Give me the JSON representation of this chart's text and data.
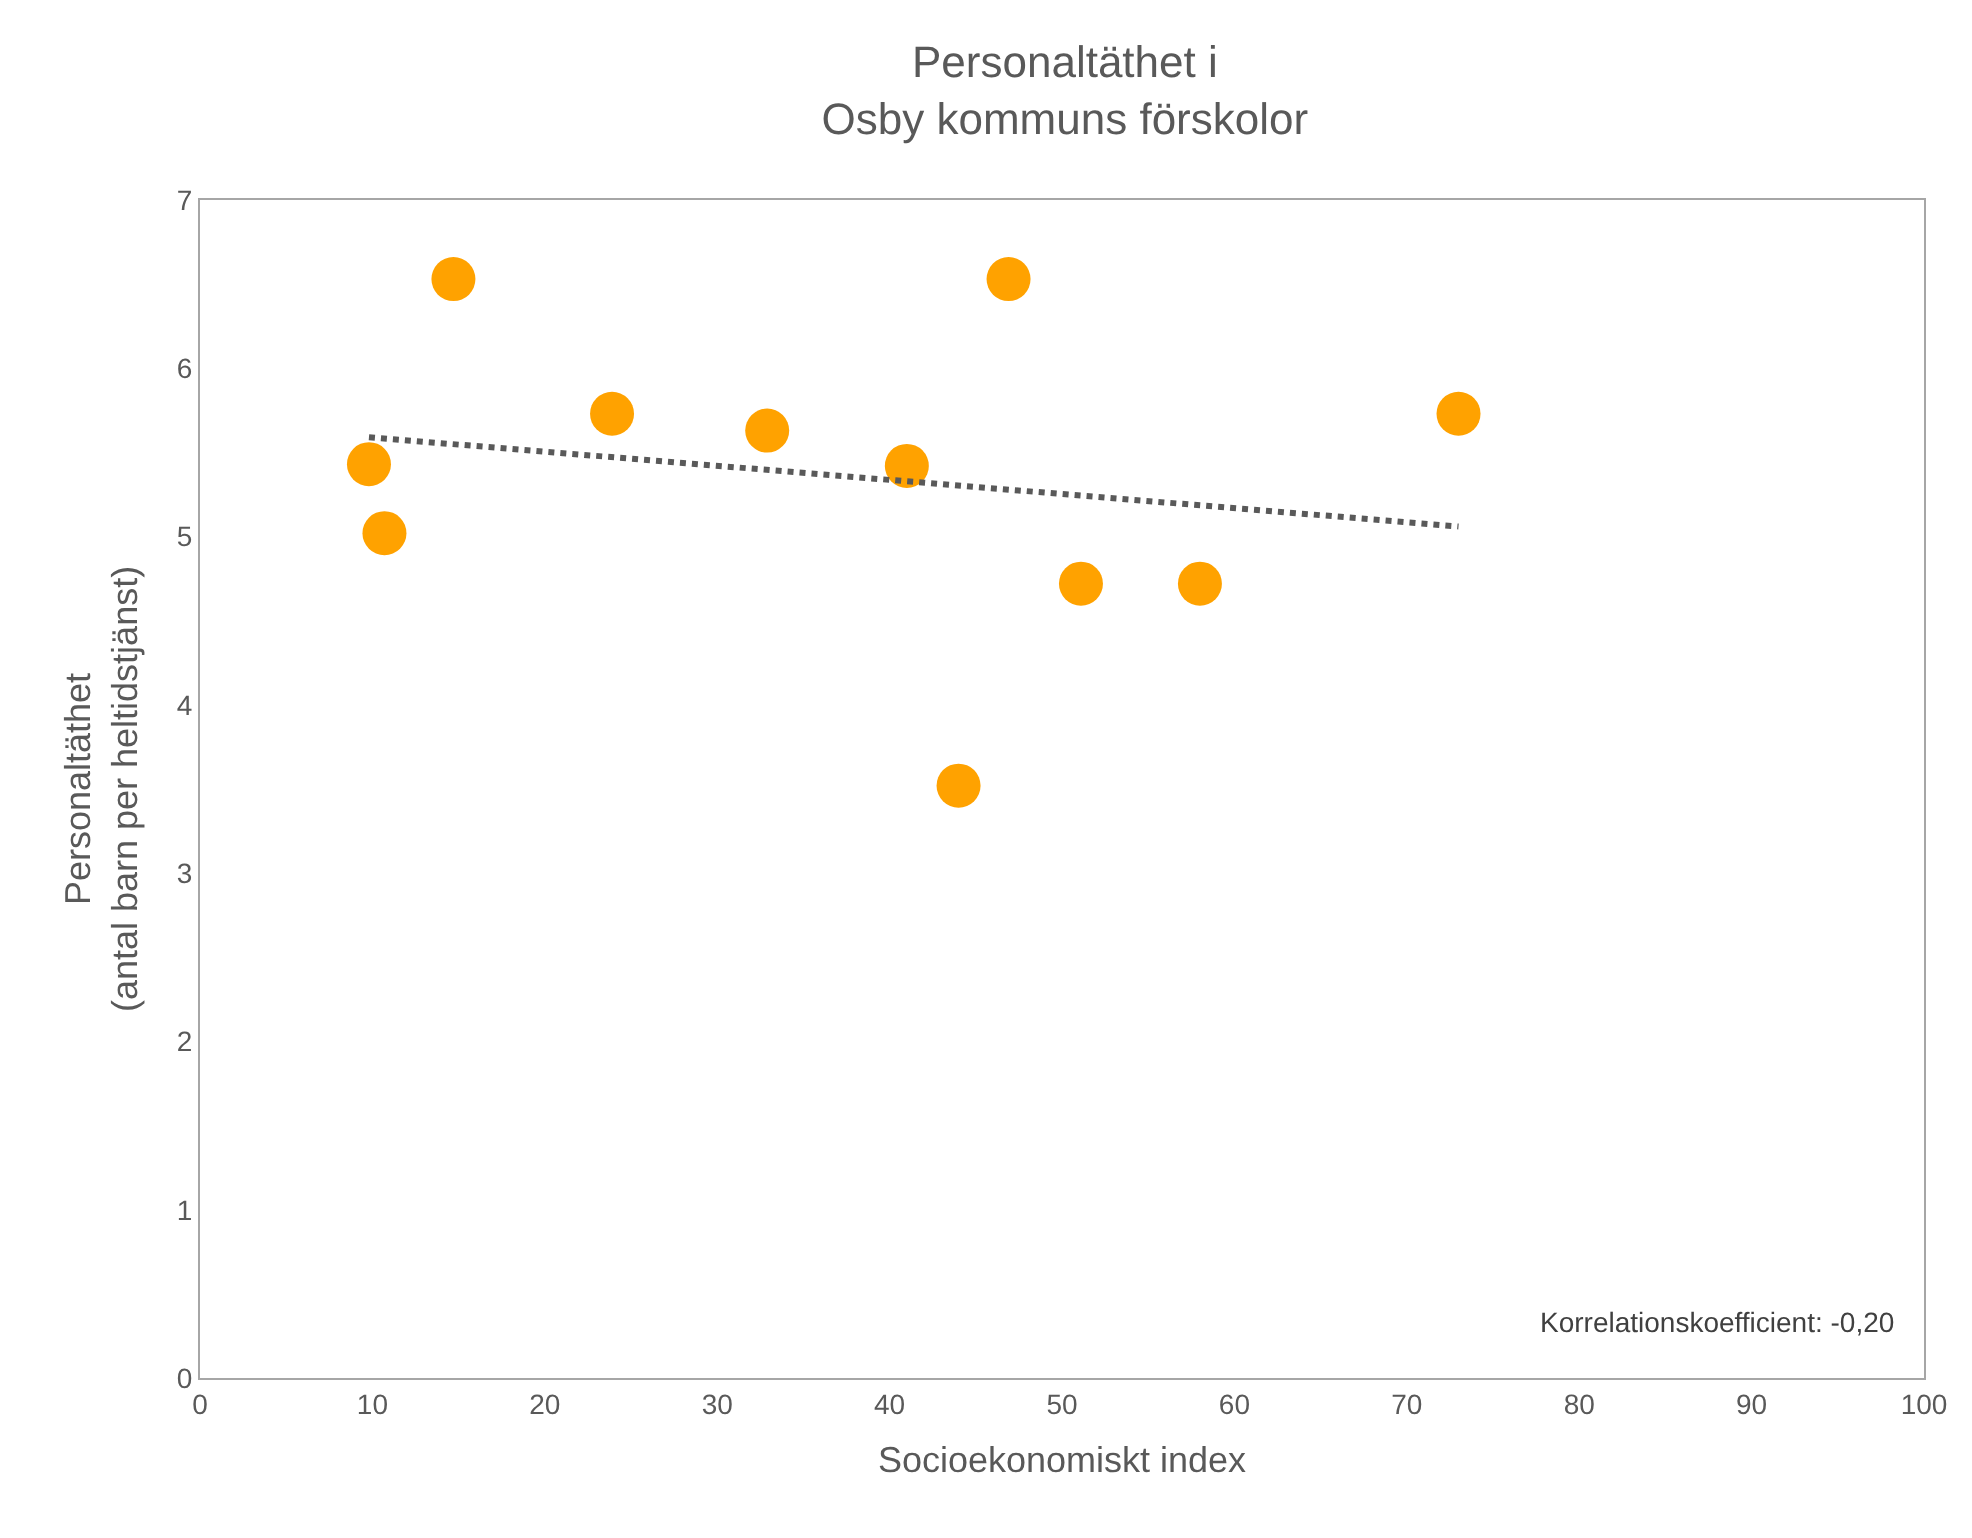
{
  "chart_data": {
    "type": "scatter",
    "title": "Personaltäthet i\nOsby kommuns förskolor",
    "xlabel": "Socioekonomiskt index",
    "ylabel": "Personaltäthet\n(antal barn per heltidstjänst)",
    "marker": "circle",
    "legend": false,
    "grid": false,
    "xlim": [
      0,
      100
    ],
    "xticks": [
      0,
      10,
      20,
      30,
      40,
      50,
      60,
      70,
      80,
      90,
      100
    ],
    "ylim": [
      0,
      7
    ],
    "yticks": [
      0,
      1,
      2,
      3,
      4,
      5,
      6,
      7
    ],
    "series": [
      {
        "type": "scatter",
        "color": "#ffa200",
        "x": [
          9.8,
          10.7,
          14.7,
          23.9,
          32.9,
          41.0,
          44.0,
          46.9,
          51.1,
          58.0,
          73.0
        ],
        "values": [
          5.43,
          5.02,
          6.53,
          5.73,
          5.63,
          5.42,
          3.52,
          6.53,
          4.72,
          4.72,
          5.73
        ]
      },
      {
        "type": "line",
        "color": "#595959",
        "line_style": "dotted",
        "marker": "none",
        "x": [
          9.8,
          73.0
        ],
        "values": [
          5.59,
          5.06
        ]
      }
    ],
    "annotations": [
      "Korrelationskoefficient: -0,20"
    ]
  }
}
